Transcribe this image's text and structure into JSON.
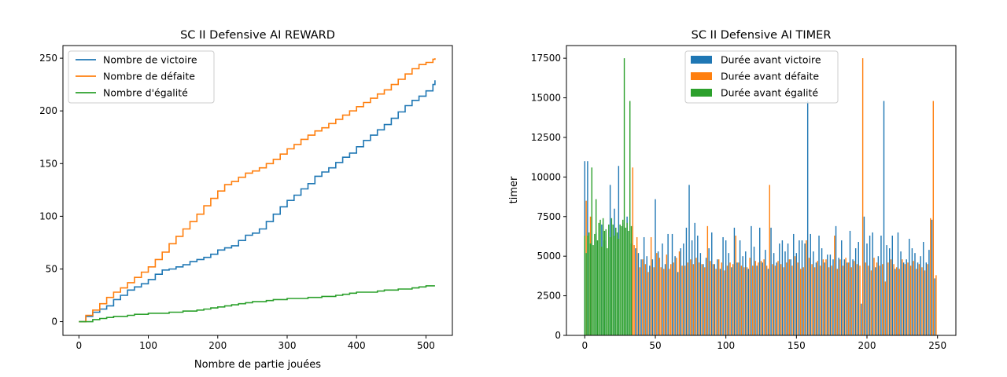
{
  "chart_data": [
    {
      "type": "line",
      "title": "SC II Defensive AI REWARD",
      "xlabel": "Nombre de partie jouées",
      "ylabel": "",
      "xlim": [
        -23,
        538
      ],
      "ylim": [
        -13,
        262
      ],
      "xticks": [
        0,
        100,
        200,
        300,
        400,
        500
      ],
      "yticks": [
        0,
        50,
        100,
        150,
        200,
        250
      ],
      "legend_position": "upper-left",
      "series": [
        {
          "name": "Nombre de victoire",
          "color": "#1f77b4",
          "x": [
            0,
            10,
            20,
            30,
            40,
            50,
            60,
            70,
            80,
            90,
            100,
            110,
            120,
            130,
            140,
            150,
            160,
            170,
            180,
            190,
            200,
            210,
            220,
            230,
            240,
            250,
            260,
            270,
            280,
            290,
            300,
            310,
            320,
            330,
            340,
            350,
            360,
            370,
            380,
            390,
            400,
            410,
            420,
            430,
            440,
            450,
            460,
            470,
            480,
            490,
            500,
            510,
            513
          ],
          "y": [
            0,
            5,
            9,
            12,
            15,
            21,
            25,
            30,
            33,
            36,
            40,
            45,
            49,
            50,
            52,
            54,
            57,
            59,
            61,
            64,
            68,
            70,
            72,
            77,
            82,
            84,
            88,
            95,
            102,
            109,
            115,
            120,
            126,
            131,
            138,
            142,
            146,
            151,
            156,
            160,
            166,
            172,
            177,
            182,
            187,
            193,
            199,
            205,
            210,
            214,
            219,
            225,
            229
          ]
        },
        {
          "name": "Nombre de défaite",
          "color": "#ff7f0e",
          "x": [
            0,
            10,
            20,
            30,
            40,
            50,
            60,
            70,
            80,
            90,
            100,
            110,
            120,
            130,
            140,
            150,
            160,
            170,
            180,
            190,
            200,
            210,
            220,
            230,
            240,
            250,
            260,
            270,
            280,
            290,
            300,
            310,
            320,
            330,
            340,
            350,
            360,
            370,
            380,
            390,
            400,
            410,
            420,
            430,
            440,
            450,
            460,
            470,
            480,
            490,
            500,
            510,
            513
          ],
          "y": [
            0,
            6,
            11,
            17,
            23,
            28,
            32,
            37,
            42,
            47,
            52,
            59,
            66,
            74,
            81,
            88,
            95,
            102,
            110,
            117,
            124,
            130,
            133,
            137,
            141,
            143,
            146,
            150,
            154,
            159,
            164,
            168,
            173,
            177,
            181,
            184,
            188,
            192,
            196,
            200,
            204,
            208,
            212,
            216,
            220,
            225,
            230,
            235,
            240,
            244,
            246,
            249,
            250
          ]
        },
        {
          "name": "Nombre d'égalité",
          "color": "#2ca02c",
          "x": [
            0,
            10,
            20,
            30,
            40,
            50,
            60,
            70,
            80,
            90,
            100,
            110,
            120,
            130,
            140,
            150,
            160,
            170,
            180,
            190,
            200,
            210,
            220,
            230,
            240,
            250,
            260,
            270,
            280,
            290,
            300,
            310,
            320,
            330,
            340,
            350,
            360,
            370,
            380,
            390,
            400,
            410,
            420,
            430,
            440,
            450,
            460,
            470,
            480,
            490,
            500,
            510,
            513
          ],
          "y": [
            0,
            0,
            2,
            3,
            4,
            5,
            5,
            6,
            7,
            7,
            8,
            8,
            8,
            9,
            9,
            10,
            10,
            11,
            12,
            13,
            14,
            15,
            16,
            17,
            18,
            19,
            19,
            20,
            21,
            21,
            22,
            22,
            22,
            23,
            23,
            24,
            24,
            25,
            26,
            27,
            28,
            28,
            28,
            29,
            30,
            30,
            31,
            31,
            32,
            33,
            34,
            34,
            34
          ]
        }
      ]
    },
    {
      "type": "bar",
      "title": "SC II Defensive AI TIMER",
      "xlabel": "",
      "ylabel": "timer",
      "xlim": [
        -13,
        263
      ],
      "ylim": [
        0,
        18300
      ],
      "xticks": [
        0,
        50,
        100,
        150,
        200,
        250
      ],
      "yticks": [
        0,
        2500,
        5000,
        7500,
        10000,
        12500,
        15000,
        17500
      ],
      "ytick_labels": [
        "0",
        "2500",
        "5000",
        "7500",
        "10000",
        "12500",
        "15000",
        "17500"
      ],
      "legend_position": "upper-center",
      "series": [
        {
          "name": "Durée avant victoire",
          "color": "#1f77b4",
          "x": [
            0,
            2,
            5,
            8,
            12,
            14,
            18,
            21,
            24,
            27,
            30,
            33,
            36,
            38,
            40,
            42,
            44,
            46,
            48,
            50,
            52,
            55,
            57,
            59,
            62,
            64,
            66,
            68,
            70,
            72,
            74,
            76,
            78,
            80,
            82,
            84,
            86,
            88,
            90,
            92,
            94,
            96,
            98,
            100,
            102,
            104,
            106,
            108,
            110,
            112,
            114,
            116,
            118,
            120,
            122,
            124,
            126,
            128,
            130,
            132,
            134,
            136,
            138,
            140,
            142,
            144,
            146,
            148,
            150,
            152,
            154,
            156,
            158,
            160,
            162,
            164,
            166,
            168,
            170,
            172,
            174,
            176,
            178,
            180,
            182,
            184,
            186,
            188,
            190,
            192,
            194,
            196,
            198,
            200,
            202,
            204,
            206,
            208,
            210,
            212,
            214,
            216,
            218,
            220,
            222,
            224,
            226,
            228,
            230,
            232,
            234,
            236,
            238,
            240,
            242,
            244,
            246,
            248
          ],
          "values": [
            11000,
            11000,
            7500,
            6500,
            7000,
            6000,
            9500,
            8000,
            10700,
            7100,
            7500,
            5800,
            5500,
            5200,
            4800,
            6200,
            5000,
            4400,
            4800,
            8600,
            5300,
            5800,
            4500,
            6400,
            6400,
            5000,
            4000,
            5500,
            5800,
            6800,
            9500,
            6000,
            7100,
            6300,
            5200,
            4500,
            4900,
            5500,
            6500,
            4500,
            4800,
            4200,
            6200,
            6000,
            5200,
            4300,
            6800,
            4600,
            6000,
            5000,
            5300,
            4200,
            6900,
            5600,
            4400,
            6800,
            4600,
            5400,
            4200,
            6800,
            5200,
            4600,
            5800,
            6000,
            5300,
            5800,
            4800,
            6400,
            5200,
            6000,
            6000,
            5800,
            14800,
            6400,
            5300,
            4600,
            6300,
            5500,
            4600,
            5100,
            5100,
            4800,
            6900,
            4900,
            6000,
            4800,
            4600,
            6600,
            4800,
            5500,
            5900,
            2000,
            7500,
            5800,
            6300,
            6500,
            4300,
            5000,
            6300,
            14800,
            5700,
            5500,
            6300,
            4200,
            6500,
            5300,
            4600,
            4800,
            6100,
            5500,
            5200,
            4600,
            5000,
            5900,
            4600,
            5400,
            7300,
            3600
          ]
        },
        {
          "name": "Durée avant défaite",
          "color": "#ff7f0e",
          "x": [
            1,
            4,
            34,
            35,
            37,
            39,
            41,
            43,
            45,
            47,
            49,
            51,
            53,
            54,
            56,
            58,
            60,
            61,
            63,
            65,
            67,
            69,
            71,
            73,
            75,
            77,
            79,
            81,
            83,
            85,
            87,
            89,
            91,
            93,
            95,
            97,
            99,
            101,
            103,
            105,
            107,
            109,
            111,
            113,
            115,
            117,
            119,
            121,
            123,
            125,
            127,
            129,
            131,
            133,
            135,
            137,
            139,
            141,
            143,
            145,
            147,
            149,
            151,
            153,
            155,
            157,
            159,
            161,
            163,
            165,
            167,
            169,
            171,
            173,
            175,
            177,
            179,
            181,
            183,
            185,
            187,
            189,
            191,
            193,
            195,
            197,
            199,
            201,
            203,
            205,
            207,
            209,
            211,
            213,
            215,
            217,
            219,
            221,
            223,
            225,
            227,
            229,
            231,
            233,
            235,
            237,
            239,
            241,
            243,
            245,
            247,
            249
          ],
          "values": [
            8500,
            7500,
            10600,
            5700,
            6200,
            4300,
            4800,
            4500,
            4000,
            6200,
            4300,
            5200,
            4900,
            4300,
            4200,
            5100,
            4200,
            4500,
            4600,
            4900,
            5300,
            4400,
            4400,
            4600,
            4800,
            4500,
            4900,
            4600,
            4500,
            4300,
            6900,
            4700,
            4500,
            4200,
            4800,
            4600,
            4100,
            4400,
            4600,
            4500,
            6300,
            4600,
            4400,
            4300,
            4300,
            4900,
            4400,
            4700,
            4600,
            4700,
            4800,
            4400,
            9500,
            4500,
            4400,
            4700,
            4500,
            4300,
            4600,
            4800,
            4400,
            5000,
            4600,
            4200,
            4300,
            6000,
            4900,
            4500,
            4300,
            4700,
            4400,
            4800,
            4800,
            4300,
            4400,
            6300,
            4200,
            4800,
            4400,
            4900,
            4600,
            4300,
            4700,
            4500,
            4400,
            17500,
            4600,
            4400,
            4100,
            4900,
            4600,
            4400,
            4500,
            3400,
            4600,
            4800,
            4500,
            4300,
            4200,
            4800,
            4500,
            4600,
            4400,
            4700,
            4200,
            4500,
            4300,
            4100,
            4500,
            7400,
            14800,
            3800
          ]
        },
        {
          "name": "Durée avant égalité",
          "color": "#2ca02c",
          "x": [
            0,
            1,
            2,
            3,
            4,
            5,
            6,
            7,
            8,
            9,
            10,
            11,
            12,
            13,
            14,
            15,
            16,
            17,
            18,
            19,
            20,
            21,
            22,
            23,
            24,
            25,
            26,
            27,
            28,
            29,
            30,
            31,
            32,
            33
          ],
          "values": [
            6300,
            5200,
            6300,
            6500,
            5800,
            10600,
            5700,
            6400,
            8600,
            6000,
            7100,
            7300,
            5600,
            7400,
            6600,
            6700,
            5500,
            7000,
            6200,
            7400,
            7000,
            6300,
            6800,
            6500,
            6100,
            7000,
            6900,
            7300,
            17500,
            6800,
            7100,
            6600,
            14800,
            6900
          ]
        }
      ]
    }
  ]
}
